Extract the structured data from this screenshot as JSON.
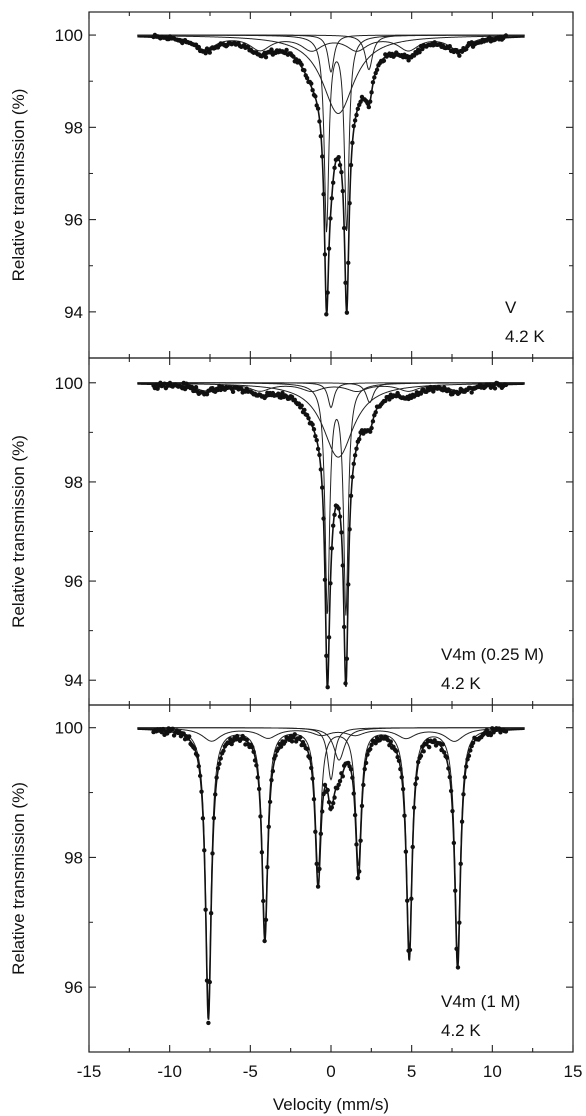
{
  "figure": {
    "xlabel": "Velocity (mm/s)",
    "xticks": [
      -15,
      -10,
      -5,
      0,
      5,
      10,
      15
    ],
    "xlim": [
      -15,
      15
    ]
  },
  "chart_data": [
    {
      "type": "scatter",
      "title": "",
      "ylabel": "Relative transmission (%)",
      "xlabel": "Velocity (mm/s)",
      "xlim": [
        -15,
        15
      ],
      "ylim": [
        93.0,
        100.5
      ],
      "yticks": [
        94,
        96,
        98,
        100
      ],
      "annotation": [
        "V",
        "4.2 K"
      ],
      "model": {
        "baseline": 100.0,
        "x_range": [
          -12,
          12
        ],
        "components": [
          {
            "kind": "doublet",
            "center": 0.35,
            "split": 1.25,
            "depth": 4.2,
            "width": 0.34
          },
          {
            "kind": "singlet",
            "center": 0.45,
            "depth": 1.7,
            "width": 2.4
          },
          {
            "kind": "singlet",
            "center": 0.0,
            "depth": 0.8,
            "width": 0.45
          },
          {
            "kind": "singlet",
            "center": 2.35,
            "depth": 0.75,
            "width": 0.55
          },
          {
            "kind": "sextet",
            "center": 0.4,
            "lines": [
              -7.8,
              -4.4,
              -1.2,
              1.6,
              4.8,
              7.9
            ],
            "depth": 0.3,
            "width": 1.6
          }
        ]
      }
    },
    {
      "type": "scatter",
      "title": "",
      "ylabel": "Relative transmission (%)",
      "xlabel": "Velocity (mm/s)",
      "xlim": [
        -15,
        15
      ],
      "ylim": [
        93.5,
        100.5
      ],
      "yticks": [
        94,
        96,
        98,
        100
      ],
      "annotation": [
        "V4m (0.25 M)",
        "4.2 K"
      ],
      "model": {
        "baseline": 100.0,
        "x_range": [
          -12,
          12
        ],
        "components": [
          {
            "kind": "doublet",
            "center": 0.35,
            "split": 1.15,
            "depth": 4.6,
            "width": 0.34
          },
          {
            "kind": "singlet",
            "center": 0.45,
            "depth": 1.5,
            "width": 2.3
          },
          {
            "kind": "singlet",
            "center": 0.0,
            "depth": 0.5,
            "width": 0.45
          },
          {
            "kind": "singlet",
            "center": 2.4,
            "depth": 0.4,
            "width": 0.55
          },
          {
            "kind": "sextet",
            "center": 0.4,
            "lines": [
              -7.8,
              -4.4,
              -1.2,
              1.6,
              4.8,
              7.9
            ],
            "depth": 0.15,
            "width": 1.6
          }
        ]
      }
    },
    {
      "type": "scatter",
      "title": "",
      "ylabel": "Relative transmission (%)",
      "xlabel": "Velocity (mm/s)",
      "xlim": [
        -15,
        15
      ],
      "ylim": [
        95.0,
        100.35
      ],
      "yticks": [
        96,
        98,
        100
      ],
      "annotation": [
        "V4m (1 M)",
        "4.2 K"
      ],
      "model": {
        "baseline": 100.0,
        "x_range": [
          -12,
          12
        ],
        "components": [
          {
            "kind": "sextet",
            "center": 0.1,
            "lines": [
              -7.6,
              -4.1,
              -0.8,
              1.7,
              4.85,
              7.85
            ],
            "depths": [
              4.3,
              3.1,
              2.2,
              2.1,
              3.4,
              3.5
            ],
            "width": 0.42
          },
          {
            "kind": "sextet",
            "center": 0.1,
            "lines": [
              -7.4,
              -3.9,
              -0.6,
              1.5,
              4.65,
              7.65
            ],
            "depths": [
              0.2,
              0.15,
              0.1,
              0.1,
              0.15,
              0.2
            ],
            "width": 1.4
          },
          {
            "kind": "singlet",
            "center": 0.0,
            "depth": 0.8,
            "width": 0.5
          },
          {
            "kind": "singlet",
            "center": 0.5,
            "depth": 0.5,
            "width": 0.8
          }
        ]
      }
    }
  ]
}
